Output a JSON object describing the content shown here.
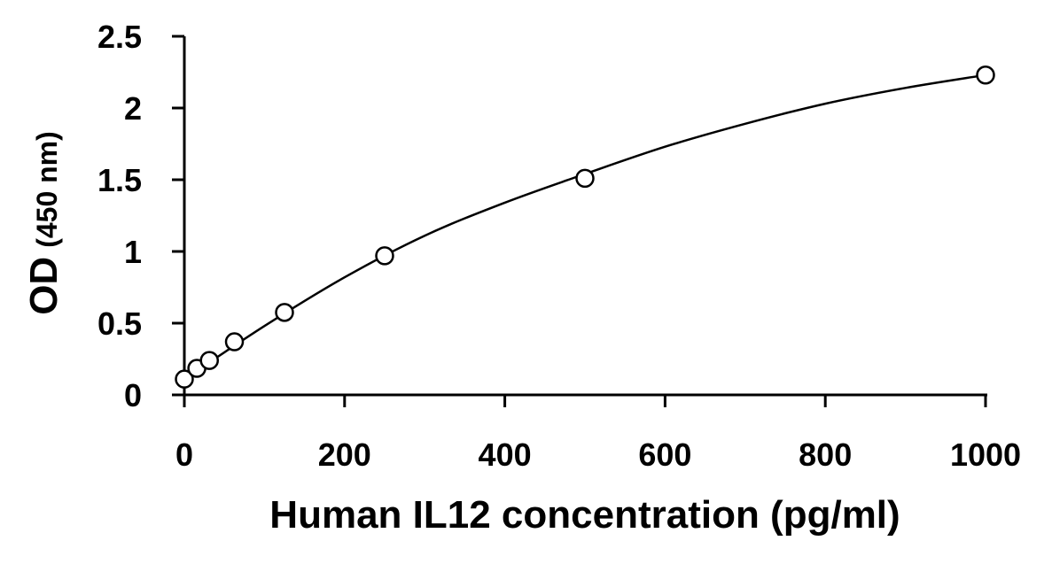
{
  "chart_data": {
    "type": "scatter",
    "title": "",
    "xlabel": "Human IL12 concentration (pg/ml)",
    "ylabel_main": "OD",
    "ylabel_unit": "(450 nm)",
    "xlim": [
      0,
      1000
    ],
    "ylim": [
      0,
      2.5
    ],
    "x_ticks": [
      0,
      200,
      400,
      600,
      800,
      1000
    ],
    "y_ticks": [
      0,
      0.5,
      1,
      1.5,
      2,
      2.5
    ],
    "x_tick_labels": [
      "0",
      "200",
      "400",
      "600",
      "800",
      "1000"
    ],
    "y_tick_labels": [
      "0",
      "0.5",
      "1",
      "1.5",
      "2",
      "2.5"
    ],
    "grid": false,
    "legend": "none",
    "series": [
      {
        "marker": "open-circle",
        "x": [
          0,
          15.6,
          31.25,
          62.5,
          125,
          250,
          500,
          1000
        ],
        "y": [
          0.11,
          0.185,
          0.24,
          0.37,
          0.575,
          0.97,
          1.51,
          2.23
        ]
      }
    ],
    "fit_curve": {
      "type": "smooth",
      "x": [
        0,
        100,
        200,
        300,
        400,
        500,
        600,
        700,
        800,
        900,
        1000
      ],
      "y": [
        0.11,
        0.48,
        0.82,
        1.11,
        1.34,
        1.54,
        1.73,
        1.89,
        2.03,
        2.14,
        2.23
      ]
    },
    "colors": {
      "marker": "#000000",
      "curve": "#000000",
      "axis": "#000000"
    }
  }
}
